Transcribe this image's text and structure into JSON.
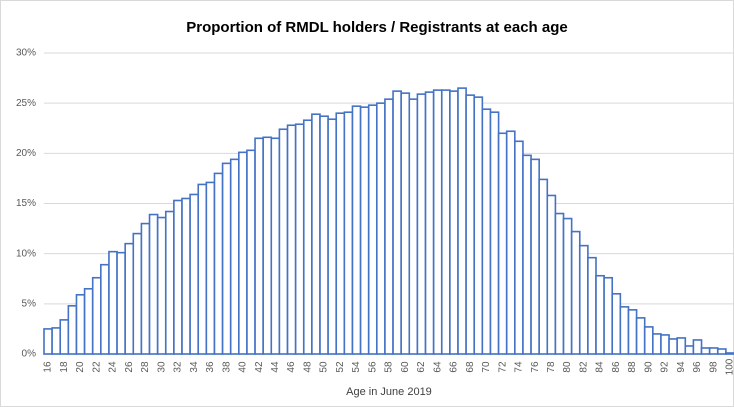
{
  "chart_data": {
    "type": "bar",
    "title": "Proportion of RMDL holders  / Registrants at each age",
    "x_label": "Age in June 2019",
    "categories": [
      "16",
      null,
      "18",
      null,
      "20",
      null,
      "22",
      null,
      "24",
      null,
      "26",
      null,
      "28",
      null,
      "30",
      null,
      "32",
      null,
      "34",
      null,
      "36",
      null,
      "38",
      null,
      "40",
      null,
      "42",
      null,
      "44",
      null,
      "46",
      null,
      "48",
      null,
      "50",
      null,
      "52",
      null,
      "54",
      null,
      "56",
      null,
      "58",
      null,
      "60",
      null,
      "62",
      null,
      "64",
      null,
      "66",
      null,
      "68",
      null,
      "70",
      null,
      "72",
      null,
      "74",
      null,
      "76",
      null,
      "78",
      null,
      "80",
      null,
      "82",
      null,
      "84",
      null,
      "86",
      null,
      "88",
      null,
      "90",
      null,
      "92",
      null,
      "94",
      null,
      "96",
      null,
      "98",
      null,
      "100"
    ],
    "values": [
      2.5,
      2.6,
      3.4,
      4.8,
      5.9,
      6.5,
      7.6,
      8.9,
      10.2,
      10.1,
      11.0,
      12.0,
      13.0,
      13.9,
      13.6,
      14.2,
      15.3,
      15.5,
      15.9,
      16.9,
      17.1,
      18.0,
      19.0,
      19.4,
      20.1,
      20.3,
      21.5,
      21.6,
      21.5,
      22.4,
      22.8,
      22.9,
      23.3,
      23.9,
      23.7,
      23.4,
      24.0,
      24.1,
      24.7,
      24.6,
      24.8,
      25.0,
      25.4,
      26.2,
      26.0,
      25.4,
      25.9,
      26.1,
      26.3,
      26.3,
      26.2,
      26.5,
      25.8,
      25.6,
      24.4,
      24.1,
      22.0,
      22.2,
      21.2,
      19.8,
      19.4,
      17.4,
      15.8,
      14.0,
      13.5,
      12.2,
      10.8,
      9.6,
      7.8,
      7.6,
      6.0,
      4.7,
      4.4,
      3.6,
      2.7,
      2.0,
      1.9,
      1.5,
      1.6,
      0.8,
      1.4,
      0.6,
      0.6,
      0.5,
      0.1
    ],
    "color": "#4472c4",
    "ylim": [
      0,
      30
    ],
    "yticks": [
      {
        "value": 0,
        "label": "0%"
      },
      {
        "value": 5,
        "label": "5%"
      },
      {
        "value": 10,
        "label": "10%"
      },
      {
        "value": 15,
        "label": "15%"
      },
      {
        "value": 20,
        "label": "20%"
      },
      {
        "value": 25,
        "label": "25%"
      },
      {
        "value": 30,
        "label": "30%"
      }
    ],
    "grid": true
  }
}
